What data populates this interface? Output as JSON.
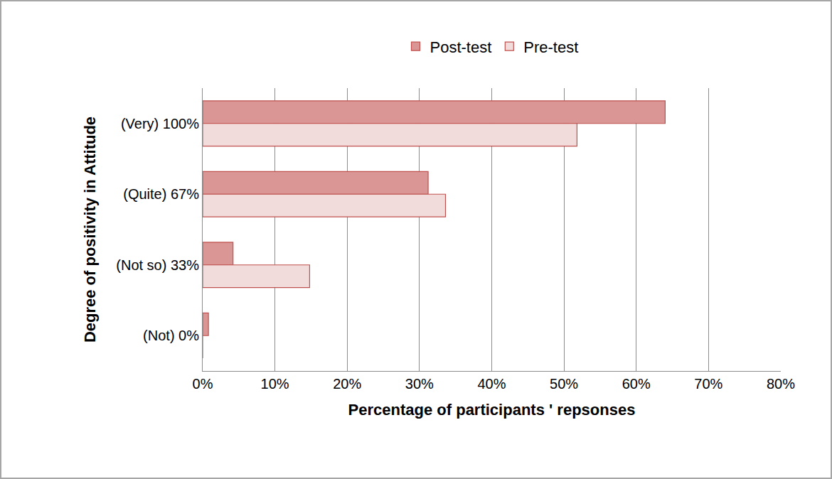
{
  "chart_data": {
    "type": "bar",
    "orientation": "horizontal",
    "xlabel": "Percentage of participants ' repsonses",
    "ylabel": "Degree of positivity in Attitude",
    "categories": [
      "(Very) 100%",
      "(Quite) 67%",
      "(Not so) 33%",
      "(Not) 0%"
    ],
    "series": [
      {
        "name": "Post-test",
        "color": "#d99694",
        "values": [
          64,
          31.2,
          4.2,
          0.8
        ]
      },
      {
        "name": "Pre-test",
        "color": "#f2dcdb",
        "values": [
          51.8,
          33.6,
          14.8,
          0
        ]
      }
    ],
    "xlim": [
      0,
      80
    ],
    "xticks": [
      {
        "value": 0,
        "label": "0%"
      },
      {
        "value": 10,
        "label": "10%"
      },
      {
        "value": 20,
        "label": "20%"
      },
      {
        "value": 30,
        "label": "30%"
      },
      {
        "value": 40,
        "label": "40%"
      },
      {
        "value": 50,
        "label": "50%"
      },
      {
        "value": 60,
        "label": "60%"
      },
      {
        "value": 70,
        "label": "70%"
      },
      {
        "value": 80,
        "label": "80%"
      }
    ],
    "grid": true,
    "legend": "top"
  }
}
